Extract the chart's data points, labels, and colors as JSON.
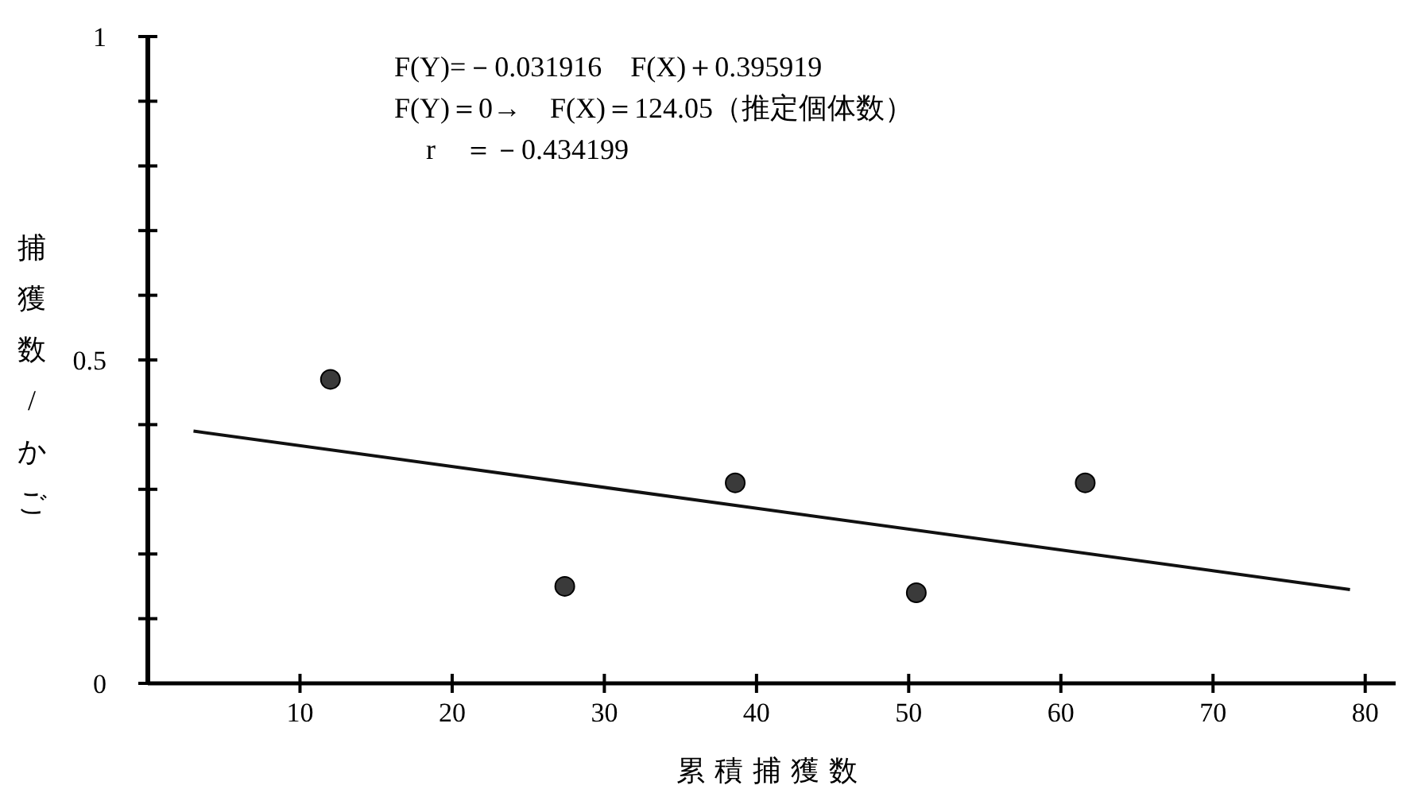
{
  "chart_data": {
    "type": "scatter",
    "xlabel": "累積捕獲数",
    "ylabel": "捕獲数/かご",
    "annotations": [
      "F(Y)=－0.031916　F(X)＋0.395919",
      "F(Y)＝0→　F(X)＝124.05（推定個体数）",
      "r　＝－0.434199"
    ],
    "xlim": [
      0,
      82
    ],
    "xticks": [
      10,
      20,
      30,
      40,
      50,
      60,
      70,
      80
    ],
    "ylim": [
      0,
      1
    ],
    "yticks": [
      0,
      {
        "value": 0.1,
        "label": null
      },
      {
        "value": 0.2,
        "label": null
      },
      {
        "value": 0.3,
        "label": null
      },
      {
        "value": 0.4,
        "label": null
      },
      0.5,
      {
        "value": 0.6,
        "label": null
      },
      {
        "value": 0.7,
        "label": null
      },
      {
        "value": 0.8,
        "label": null
      },
      {
        "value": 0.9,
        "label": null
      },
      1
    ],
    "grid": false,
    "marker": "circle",
    "series": [
      {
        "color": "#3a3a3a",
        "x": [
          12,
          27.4,
          38.6,
          50.5,
          61.6
        ],
        "values": [
          0.47,
          0.15,
          0.31,
          0.14,
          0.31
        ]
      },
      {
        "type": "line",
        "color": "#111111",
        "marker": "none",
        "x": [
          3,
          79
        ],
        "values": [
          0.39,
          0.145
        ]
      }
    ]
  }
}
